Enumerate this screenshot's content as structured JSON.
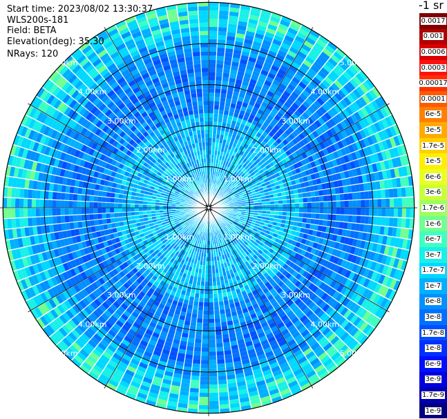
{
  "header": {
    "start_time": "Start time: 2023/08/02 13:30:37",
    "station": "WLS200s-181",
    "field": "Field: BETA",
    "elevation": "Elevation(deg): 35.30",
    "nrays": "NRays: 120"
  },
  "units": "-1 sr",
  "range_rings": {
    "labels": [
      "1.00km",
      "2.00km",
      "3.00km",
      "4.00km",
      "5.00km"
    ],
    "km": [
      1,
      2,
      3,
      4,
      5
    ]
  },
  "ppi": {
    "n_rays": 120,
    "max_range_km": 5
  },
  "colorbar": {
    "labels": [
      "0.0017",
      "0.001",
      "0.0006",
      "0.0003",
      "0.00017",
      "0.0001",
      "6e-5",
      "3e-5",
      "1.7e-5",
      "1e-5",
      "6e-6",
      "3e-6",
      "1.7e-6",
      "1e-6",
      "6e-7",
      "3e-7",
      "1.7e-7",
      "1e-7",
      "6e-8",
      "3e-8",
      "1.7e-8",
      "1e-8",
      "6e-9",
      "3e-9",
      "1.7e-9",
      "1e-9"
    ],
    "colors": [
      "#800000",
      "#b00000",
      "#d80000",
      "#ff1010",
      "#ff3000",
      "#ff5a00",
      "#ff8000",
      "#ffaa00",
      "#ffd000",
      "#ffee00",
      "#e8ff20",
      "#c8ff38",
      "#a0ff60",
      "#70ff90",
      "#40ffc0",
      "#18f0e8",
      "#00d8ff",
      "#00b0ff",
      "#0090ff",
      "#0070ff",
      "#0050ff",
      "#0030ff",
      "#0010ff",
      "#0000e0",
      "#0000b0",
      "#000080"
    ]
  }
}
